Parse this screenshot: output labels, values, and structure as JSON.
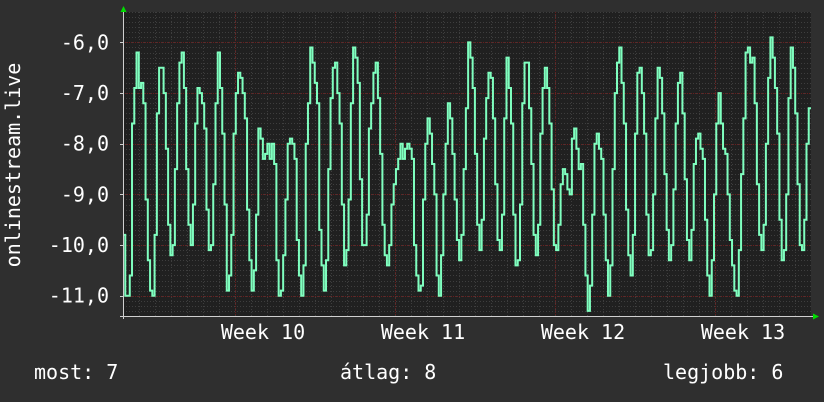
{
  "chart_data": {
    "type": "line",
    "title": "",
    "ylabel": "onlinestream.live",
    "xlabel": "",
    "ylim": [
      -11.4,
      -5.4
    ],
    "yticks": [
      {
        "value": -6,
        "label": "-6,0"
      },
      {
        "value": -7,
        "label": "-7,0"
      },
      {
        "value": -8,
        "label": "-8,0"
      },
      {
        "value": -9,
        "label": "-9,0"
      },
      {
        "value": -10,
        "label": "-10,0"
      },
      {
        "value": -11,
        "label": "-11,0"
      }
    ],
    "xlim": [
      0,
      4.3
    ],
    "xticks": [
      {
        "value": 0.7,
        "label": "Week 10"
      },
      {
        "value": 1.7,
        "label": "Week 11"
      },
      {
        "value": 2.7,
        "label": "Week 12"
      },
      {
        "value": 3.7,
        "label": "Week 13"
      }
    ],
    "grid": true,
    "series": [
      {
        "name": "",
        "color": "#7fffbf",
        "values": [
          -9.8,
          -11.0,
          -11.0,
          -10.6,
          -7.6,
          -6.9,
          -6.2,
          -6.9,
          -6.8,
          -7.2,
          -9.1,
          -10.3,
          -10.9,
          -11.0,
          -9.8,
          -7.4,
          -6.5,
          -6.5,
          -7.0,
          -8.1,
          -9.6,
          -10.2,
          -10.0,
          -8.5,
          -7.2,
          -6.4,
          -6.2,
          -6.9,
          -8.5,
          -9.6,
          -10.0,
          -9.2,
          -7.6,
          -6.9,
          -7.0,
          -7.2,
          -7.7,
          -9.3,
          -10.1,
          -10.0,
          -8.8,
          -7.2,
          -6.2,
          -6.9,
          -7.8,
          -9.2,
          -10.9,
          -10.6,
          -9.8,
          -7.8,
          -7.0,
          -6.6,
          -6.7,
          -7.0,
          -7.5,
          -9.3,
          -10.3,
          -10.9,
          -10.5,
          -9.4,
          -7.7,
          -7.9,
          -8.3,
          -8.2,
          -8.0,
          -8.3,
          -8.0,
          -8.4,
          -10.3,
          -11.0,
          -10.9,
          -10.2,
          -9.1,
          -8.0,
          -7.9,
          -8.0,
          -8.3,
          -9.9,
          -10.6,
          -11.0,
          -10.4,
          -8.0,
          -7.2,
          -6.1,
          -6.4,
          -6.8,
          -7.2,
          -9.7,
          -10.4,
          -10.9,
          -10.3,
          -8.5,
          -7.1,
          -6.5,
          -6.4,
          -7.0,
          -7.6,
          -9.2,
          -10.4,
          -10.1,
          -9.1,
          -7.2,
          -6.1,
          -6.3,
          -6.8,
          -8.7,
          -10.0,
          -10.0,
          -9.4,
          -7.7,
          -7.2,
          -6.6,
          -6.4,
          -7.1,
          -8.2,
          -9.6,
          -10.2,
          -10.4,
          -10.0,
          -9.2,
          -8.8,
          -8.5,
          -8.3,
          -8.0,
          -8.3,
          -8.1,
          -8.0,
          -8.1,
          -8.3,
          -10.0,
          -10.6,
          -10.9,
          -10.8,
          -9.1,
          -8.0,
          -7.5,
          -7.8,
          -8.4,
          -9.0,
          -10.6,
          -11.0,
          -10.2,
          -9.0,
          -8.0,
          -7.2,
          -7.5,
          -8.2,
          -9.1,
          -9.9,
          -10.3,
          -9.8,
          -8.5,
          -7.3,
          -6.0,
          -6.3,
          -6.9,
          -8.2,
          -9.6,
          -10.1,
          -9.5,
          -7.9,
          -7.1,
          -6.6,
          -6.7,
          -7.5,
          -8.8,
          -9.9,
          -10.1,
          -9.4,
          -7.5,
          -6.3,
          -6.9,
          -7.6,
          -9.4,
          -10.4,
          -10.3,
          -9.2,
          -7.2,
          -6.4,
          -6.4,
          -7.3,
          -8.4,
          -9.8,
          -10.2,
          -9.6,
          -7.8,
          -6.9,
          -6.5,
          -6.9,
          -7.6,
          -8.9,
          -10.0,
          -10.1,
          -9.6,
          -8.8,
          -8.5,
          -8.6,
          -8.9,
          -9.0,
          -7.9,
          -7.7,
          -8.1,
          -8.5,
          -8.4,
          -9.6,
          -10.6,
          -11.3,
          -10.8,
          -9.4,
          -8.0,
          -7.8,
          -8.1,
          -8.3,
          -9.4,
          -10.3,
          -11.0,
          -10.4,
          -8.5,
          -7.0,
          -6.4,
          -6.1,
          -6.8,
          -7.6,
          -9.3,
          -10.2,
          -10.6,
          -9.8,
          -7.8,
          -6.6,
          -6.5,
          -7.0,
          -7.8,
          -9.4,
          -10.2,
          -10.1,
          -9.0,
          -7.5,
          -6.5,
          -6.7,
          -7.4,
          -8.6,
          -9.7,
          -10.3,
          -10.0,
          -8.9,
          -7.6,
          -6.8,
          -6.6,
          -7.4,
          -8.7,
          -9.9,
          -10.3,
          -9.7,
          -8.4,
          -7.9,
          -7.8,
          -8.1,
          -8.3,
          -9.5,
          -10.6,
          -11.0,
          -10.3,
          -9.0,
          -7.6,
          -7.0,
          -7.6,
          -8.1,
          -8.2,
          -9.0,
          -9.9,
          -10.4,
          -10.9,
          -11.0,
          -10.1,
          -8.6,
          -7.5,
          -6.2,
          -6.1,
          -6.4,
          -6.3,
          -7.2,
          -8.8,
          -9.8,
          -10.1,
          -9.6,
          -8.0,
          -6.7,
          -5.9,
          -6.3,
          -6.9,
          -7.8,
          -9.5,
          -10.3,
          -10.1,
          -9.0,
          -7.1,
          -6.1,
          -6.5,
          -7.4,
          -8.8,
          -10.0,
          -10.1,
          -9.5,
          -8.0,
          -7.3
        ]
      }
    ]
  },
  "footer": {
    "current": "most: 7",
    "average": "átlag: 8",
    "best": "legjobb: 6"
  },
  "colors": {
    "background": "#2f2f2f",
    "plot_background": "#202020",
    "line": "#7fffbf",
    "grid_major": "#6a1e1e",
    "grid_minor": "#3e3e3e",
    "axis": "#d0d0d0",
    "arrow": "#00dd00"
  }
}
